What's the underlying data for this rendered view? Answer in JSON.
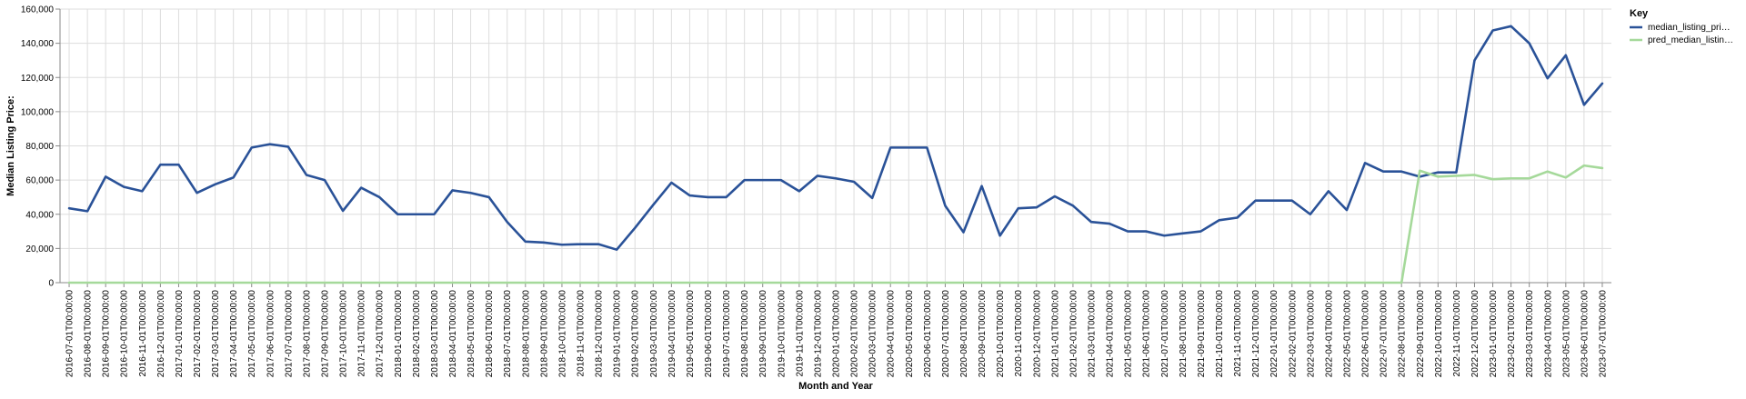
{
  "chart_data": {
    "type": "line",
    "xlabel": "Month and Year",
    "ylabel": "Median Listing Price:",
    "ylim": [
      0,
      160000
    ],
    "y_ticks": [
      0,
      20000,
      40000,
      60000,
      80000,
      100000,
      120000,
      140000,
      160000
    ],
    "y_tick_labels": [
      "0",
      "20,000",
      "40,000",
      "60,000",
      "80,000",
      "100,000",
      "120,000",
      "140,000",
      "160,000"
    ],
    "grid": true,
    "legend": {
      "title": "Key",
      "placement": "top-right"
    },
    "x": [
      "2016-07-01T00:00:00",
      "2016-08-01T00:00:00",
      "2016-09-01T00:00:00",
      "2016-10-01T00:00:00",
      "2016-11-01T00:00:00",
      "2016-12-01T00:00:00",
      "2017-01-01T00:00:00",
      "2017-02-01T00:00:00",
      "2017-03-01T00:00:00",
      "2017-04-01T00:00:00",
      "2017-05-01T00:00:00",
      "2017-06-01T00:00:00",
      "2017-07-01T00:00:00",
      "2017-08-01T00:00:00",
      "2017-09-01T00:00:00",
      "2017-10-01T00:00:00",
      "2017-11-01T00:00:00",
      "2017-12-01T00:00:00",
      "2018-01-01T00:00:00",
      "2018-02-01T00:00:00",
      "2018-03-01T00:00:00",
      "2018-04-01T00:00:00",
      "2018-05-01T00:00:00",
      "2018-06-01T00:00:00",
      "2018-07-01T00:00:00",
      "2018-08-01T00:00:00",
      "2018-09-01T00:00:00",
      "2018-10-01T00:00:00",
      "2018-11-01T00:00:00",
      "2018-12-01T00:00:00",
      "2019-01-01T00:00:00",
      "2019-02-01T00:00:00",
      "2019-03-01T00:00:00",
      "2019-04-01T00:00:00",
      "2019-05-01T00:00:00",
      "2019-06-01T00:00:00",
      "2019-07-01T00:00:00",
      "2019-08-01T00:00:00",
      "2019-09-01T00:00:00",
      "2019-10-01T00:00:00",
      "2019-11-01T00:00:00",
      "2019-12-01T00:00:00",
      "2020-01-01T00:00:00",
      "2020-02-01T00:00:00",
      "2020-03-01T00:00:00",
      "2020-04-01T00:00:00",
      "2020-05-01T00:00:00",
      "2020-06-01T00:00:00",
      "2020-07-01T00:00:00",
      "2020-08-01T00:00:00",
      "2020-09-01T00:00:00",
      "2020-10-01T00:00:00",
      "2020-11-01T00:00:00",
      "2020-12-01T00:00:00",
      "2021-01-01T00:00:00",
      "2021-02-01T00:00:00",
      "2021-03-01T00:00:00",
      "2021-04-01T00:00:00",
      "2021-05-01T00:00:00",
      "2021-06-01T00:00:00",
      "2021-07-01T00:00:00",
      "2021-08-01T00:00:00",
      "2021-09-01T00:00:00",
      "2021-10-01T00:00:00",
      "2021-11-01T00:00:00",
      "2021-12-01T00:00:00",
      "2022-01-01T00:00:00",
      "2022-02-01T00:00:00",
      "2022-03-01T00:00:00",
      "2022-04-01T00:00:00",
      "2022-05-01T00:00:00",
      "2022-06-01T00:00:00",
      "2022-07-01T00:00:00",
      "2022-08-01T00:00:00",
      "2022-09-01T00:00:00",
      "2022-10-01T00:00:00",
      "2022-11-01T00:00:00",
      "2022-12-01T00:00:00",
      "2023-01-01T00:00:00",
      "2023-02-01T00:00:00",
      "2023-03-01T00:00:00",
      "2023-04-01T00:00:00",
      "2023-05-01T00:00:00",
      "2023-06-01T00:00:00",
      "2023-07-01T00:00:00"
    ],
    "series": [
      {
        "name": "median_listing_pri…",
        "color": "#2a5298",
        "values": [
          43500,
          41800,
          62000,
          56000,
          53500,
          69000,
          69000,
          52500,
          57500,
          61500,
          79000,
          81000,
          79500,
          63000,
          60000,
          42000,
          55500,
          50000,
          40000,
          40000,
          40000,
          54000,
          52500,
          50000,
          35500,
          24000,
          23500,
          22200,
          22500,
          22500,
          19300,
          32000,
          45500,
          58500,
          51000,
          50000,
          50000,
          60000,
          60000,
          60000,
          53500,
          62500,
          61000,
          59000,
          49500,
          79000,
          79000,
          79000,
          45000,
          29500,
          56500,
          27500,
          43500,
          44000,
          50500,
          45000,
          35500,
          34500,
          30000,
          30000,
          27500,
          28800,
          30000,
          36500,
          38000,
          48000,
          48000,
          48000,
          40000,
          53500,
          42500,
          70000,
          65000,
          65000,
          62000,
          64500,
          64500,
          130000,
          147500,
          150000,
          140000,
          119500,
          133000,
          104000,
          116500
        ]
      },
      {
        "name": "pred_median_listin…",
        "color": "#a5d99a",
        "values": [
          0,
          0,
          0,
          0,
          0,
          0,
          0,
          0,
          0,
          0,
          0,
          0,
          0,
          0,
          0,
          0,
          0,
          0,
          0,
          0,
          0,
          0,
          0,
          0,
          0,
          0,
          0,
          0,
          0,
          0,
          0,
          0,
          0,
          0,
          0,
          0,
          0,
          0,
          0,
          0,
          0,
          0,
          0,
          0,
          0,
          0,
          0,
          0,
          0,
          0,
          0,
          0,
          0,
          0,
          0,
          0,
          0,
          0,
          0,
          0,
          0,
          0,
          0,
          0,
          0,
          0,
          0,
          0,
          0,
          0,
          0,
          0,
          0,
          0,
          65500,
          62000,
          62500,
          63000,
          60500,
          61000,
          61000,
          65000,
          61500,
          68500,
          67000
        ]
      }
    ]
  }
}
